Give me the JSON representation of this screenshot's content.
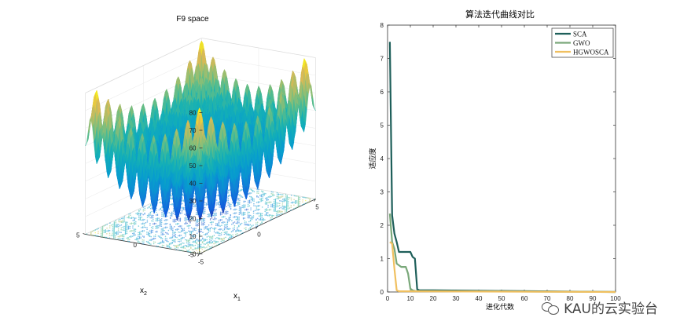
{
  "chart_data": [
    {
      "type": "surface3d",
      "title": "F9 space",
      "xlabel": "x",
      "xlabel_sub": "1",
      "ylabel": "x",
      "ylabel_sub": "2",
      "xlim": [
        -5,
        5
      ],
      "ylim": [
        -5,
        5
      ],
      "zlim": [
        0,
        80
      ],
      "x_ticks": [
        "-5",
        "0",
        "5"
      ],
      "y_ticks": [
        "-5",
        "0",
        "5"
      ],
      "z_ticks": [
        "0",
        "10",
        "20",
        "30",
        "40",
        "50",
        "60",
        "70",
        "80"
      ],
      "function": "Rastrigin",
      "colormap": "parula",
      "contour_projection": true
    },
    {
      "type": "line",
      "title": "算法迭代曲线对比",
      "xlabel": "进化代数",
      "ylabel": "适应度",
      "xlim": [
        0,
        100
      ],
      "ylim": [
        0,
        8
      ],
      "x_ticks": [
        "0",
        "10",
        "20",
        "30",
        "40",
        "50",
        "60",
        "70",
        "80",
        "90",
        "100"
      ],
      "y_ticks": [
        "0",
        "1",
        "2",
        "3",
        "4",
        "5",
        "6",
        "7",
        "8"
      ],
      "legend_position": "top-right",
      "grid": false,
      "series": [
        {
          "name": "SCA",
          "color": "#1e5f5a",
          "x": [
            1,
            2,
            3,
            4,
            5,
            10,
            11,
            12,
            13,
            14,
            20,
            100
          ],
          "y": [
            7.5,
            2.3,
            1.75,
            1.5,
            1.2,
            1.2,
            1.05,
            1.0,
            0.08,
            0.05,
            0.05,
            0
          ]
        },
        {
          "name": "GWO",
          "color": "#7aa87a",
          "x": [
            1,
            2,
            3,
            4,
            5,
            6,
            8,
            9,
            10,
            11,
            12,
            100
          ],
          "y": [
            2.35,
            1.5,
            1.3,
            0.85,
            0.8,
            0.75,
            0.75,
            0.55,
            0.1,
            0.05,
            0.03,
            0
          ]
        },
        {
          "name": "HGWOSCA",
          "color": "#f0c060",
          "x": [
            1,
            2,
            3,
            4,
            5,
            100
          ],
          "y": [
            1.5,
            1.45,
            0.7,
            0.05,
            0.02,
            0
          ]
        }
      ]
    }
  ],
  "watermark": {
    "text": "KAU的云实验台"
  }
}
